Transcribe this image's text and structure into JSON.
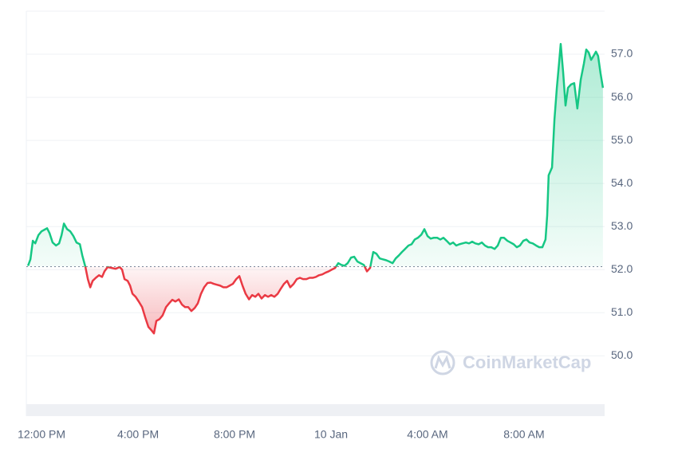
{
  "chart_data": {
    "type": "line",
    "x": [
      -0.56,
      -0.46,
      -0.36,
      -0.26,
      -0.13,
      0,
      0.13,
      0.23,
      0.33,
      0.46,
      0.6,
      0.73,
      0.83,
      0.93,
      1.06,
      1.19,
      1.32,
      1.45,
      1.59,
      1.69,
      1.82,
      1.92,
      2.02,
      2.12,
      2.25,
      2.38,
      2.51,
      2.61,
      2.74,
      2.91,
      3.07,
      3.24,
      3.34,
      3.44,
      3.57,
      3.67,
      3.77,
      3.9,
      4.03,
      4.17,
      4.3,
      4.43,
      4.56,
      4.66,
      4.76,
      4.89,
      5.02,
      5.16,
      5.29,
      5.42,
      5.55,
      5.69,
      5.82,
      5.95,
      6.08,
      6.21,
      6.35,
      6.48,
      6.61,
      6.74,
      6.88,
      7.01,
      7.14,
      7.27,
      7.4,
      7.54,
      7.67,
      7.8,
      7.93,
      8.07,
      8.2,
      8.33,
      8.46,
      8.6,
      8.73,
      8.86,
      8.99,
      9.12,
      9.26,
      9.39,
      9.52,
      9.65,
      9.79,
      9.92,
      10.05,
      10.18,
      10.31,
      10.45,
      10.58,
      10.71,
      10.84,
      10.98,
      11.11,
      11.24,
      11.37,
      11.5,
      11.64,
      11.77,
      11.9,
      12.03,
      12.17,
      12.3,
      12.43,
      12.56,
      12.69,
      12.83,
      12.96,
      13.09,
      13.22,
      13.36,
      13.49,
      13.62,
      13.75,
      13.88,
      14.02,
      14.15,
      14.28,
      14.41,
      14.55,
      14.68,
      14.81,
      14.94,
      15.07,
      15.21,
      15.34,
      15.47,
      15.6,
      15.74,
      15.87,
      16.0,
      16.13,
      16.26,
      16.4,
      16.53,
      16.66,
      16.79,
      16.93,
      17.06,
      17.19,
      17.32,
      17.45,
      17.59,
      17.72,
      17.85,
      17.98,
      18.12,
      18.25,
      18.38,
      18.51,
      18.64,
      18.78,
      18.91,
      19.04,
      19.17,
      19.31,
      19.44,
      19.57,
      19.7,
      19.83,
      19.97,
      20.1,
      20.23,
      20.36,
      20.5,
      20.63,
      20.76,
      20.89,
      20.96,
      21.02,
      21.16,
      21.26,
      21.36,
      21.45,
      21.52,
      21.62,
      21.72,
      21.82,
      21.95,
      22.08,
      22.21,
      22.35,
      22.48,
      22.58,
      22.68,
      22.78,
      22.88,
      22.98,
      23.07,
      23.17,
      23.27
    ],
    "values": [
      52.09,
      52.24,
      52.67,
      52.61,
      52.8,
      52.89,
      52.93,
      52.96,
      52.85,
      52.63,
      52.56,
      52.61,
      52.8,
      53.07,
      52.94,
      52.89,
      52.78,
      52.63,
      52.59,
      52.33,
      52.06,
      51.78,
      51.59,
      51.74,
      51.81,
      51.87,
      51.83,
      51.96,
      52.06,
      52.04,
      52.02,
      52.06,
      52.0,
      51.78,
      51.74,
      51.63,
      51.44,
      51.37,
      51.26,
      51.13,
      50.89,
      50.67,
      50.59,
      50.52,
      50.81,
      50.85,
      50.94,
      51.13,
      51.22,
      51.3,
      51.26,
      51.31,
      51.19,
      51.13,
      51.13,
      51.04,
      51.11,
      51.22,
      51.44,
      51.59,
      51.69,
      51.7,
      51.67,
      51.65,
      51.63,
      51.59,
      51.59,
      51.63,
      51.67,
      51.78,
      51.85,
      51.63,
      51.44,
      51.31,
      51.41,
      51.37,
      51.44,
      51.33,
      51.41,
      51.37,
      51.41,
      51.37,
      51.44,
      51.56,
      51.67,
      51.74,
      51.59,
      51.67,
      51.78,
      51.81,
      51.78,
      51.78,
      51.81,
      51.81,
      51.83,
      51.87,
      51.89,
      51.93,
      51.96,
      52.0,
      52.04,
      52.15,
      52.11,
      52.09,
      52.15,
      52.28,
      52.3,
      52.19,
      52.15,
      52.11,
      51.96,
      52.04,
      52.41,
      52.37,
      52.26,
      52.24,
      52.22,
      52.19,
      52.15,
      52.26,
      52.33,
      52.41,
      52.48,
      52.56,
      52.59,
      52.7,
      52.74,
      52.81,
      52.94,
      52.78,
      52.72,
      52.74,
      52.74,
      52.7,
      52.74,
      52.67,
      52.59,
      52.63,
      52.56,
      52.59,
      52.61,
      52.63,
      52.61,
      52.65,
      52.61,
      52.59,
      52.63,
      52.56,
      52.52,
      52.52,
      52.48,
      52.56,
      52.74,
      52.74,
      52.67,
      52.63,
      52.59,
      52.52,
      52.56,
      52.67,
      52.7,
      52.63,
      52.61,
      52.56,
      52.52,
      52.52,
      52.7,
      53.26,
      54.19,
      54.37,
      55.48,
      56.22,
      56.78,
      57.24,
      56.59,
      55.81,
      56.22,
      56.3,
      56.33,
      55.74,
      56.41,
      56.78,
      57.11,
      57.04,
      56.87,
      56.96,
      57.06,
      56.96,
      56.56,
      56.22
    ],
    "baseline": 52.07,
    "up_color": "#16c784",
    "down_color": "#ea3943",
    "xlim": [
      -0.63,
      23.34
    ],
    "xticks": [
      {
        "value": 0,
        "label": "12:00 PM"
      },
      {
        "value": 4,
        "label": "4:00 PM"
      },
      {
        "value": 8,
        "label": "8:00 PM"
      },
      {
        "value": 12,
        "label": "10 Jan"
      },
      {
        "value": 16,
        "label": "4:00 AM"
      },
      {
        "value": 20,
        "label": "8:00 AM"
      }
    ],
    "ylim": [
      48.6,
      58.0
    ],
    "yticks": [
      {
        "value": 50,
        "label": "50.0"
      },
      {
        "value": 51,
        "label": "51.0"
      },
      {
        "value": 52,
        "label": "52.0"
      },
      {
        "value": 53,
        "label": "53.0"
      },
      {
        "value": 54,
        "label": "54.0"
      },
      {
        "value": 55,
        "label": "55.0"
      },
      {
        "value": 56,
        "label": "56.0"
      },
      {
        "value": 57,
        "label": "57.0"
      }
    ],
    "grid": true,
    "watermark": "CoinMarketCap"
  }
}
